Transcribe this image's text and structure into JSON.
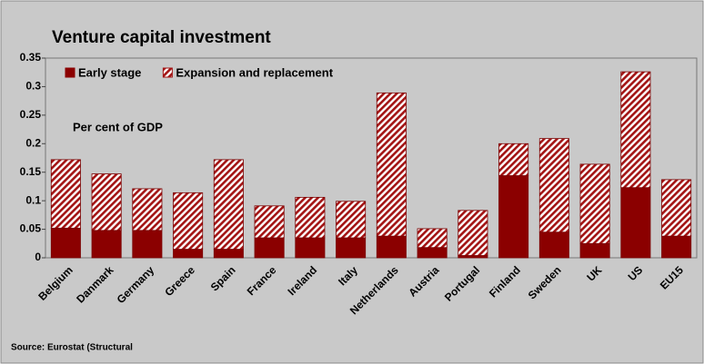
{
  "chart_data": {
    "type": "stacked_bar",
    "title": "Venture capital investment",
    "annotation": "Per cent of GDP",
    "source": "Source: Eurostat (Structural",
    "categories": [
      "Belgium",
      "Danmark",
      "Germany",
      "Greece",
      "Spain",
      "France",
      "Ireland",
      "Italy",
      "Netherlands",
      "Austria",
      "Portugal",
      "Finland",
      "Sweden",
      "UK",
      "US",
      "EU15"
    ],
    "series": [
      {
        "name": "Early stage",
        "color": "#8b0000",
        "hatch": false,
        "values": [
          0.052,
          0.048,
          0.048,
          0.015,
          0.015,
          0.035,
          0.035,
          0.035,
          0.038,
          0.018,
          0.004,
          0.144,
          0.045,
          0.025,
          0.123,
          0.038
        ]
      },
      {
        "name": "Expansion and replacement",
        "color": "#a31414",
        "hatch": true,
        "values": [
          0.12,
          0.099,
          0.073,
          0.099,
          0.157,
          0.056,
          0.071,
          0.064,
          0.251,
          0.033,
          0.079,
          0.056,
          0.164,
          0.139,
          0.203,
          0.099
        ]
      }
    ],
    "ylim": [
      0,
      0.35
    ],
    "yticks": [
      0,
      0.05,
      0.1,
      0.15,
      0.2,
      0.25,
      0.3,
      0.35
    ],
    "grid": false,
    "legend": "top-left"
  }
}
